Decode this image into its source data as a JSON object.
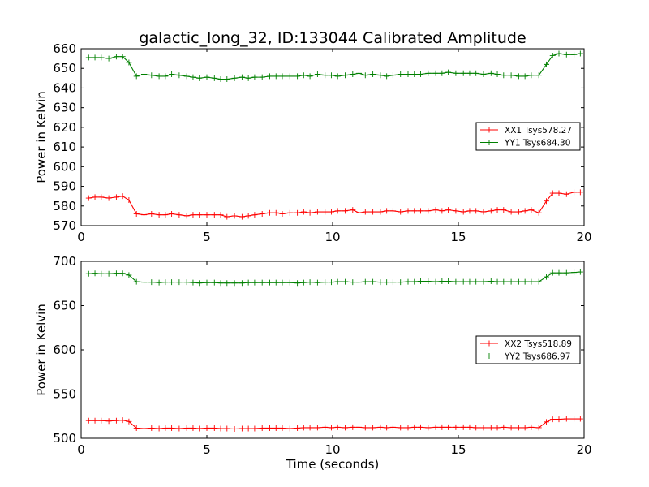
{
  "title": "galactic_long_32, ID:133044 Calibrated Amplitude",
  "colors": {
    "red": "#ff0000",
    "green": "#008000"
  },
  "chart_data": [
    {
      "type": "line",
      "ylabel": "Power in Kelvin",
      "xlabel": "",
      "xlim": [
        0,
        20
      ],
      "ylim": [
        570,
        660
      ],
      "xticks": [
        0,
        5,
        10,
        15,
        20
      ],
      "yticks": [
        570,
        580,
        590,
        600,
        610,
        620,
        630,
        640,
        650,
        660
      ],
      "grid": false,
      "legend_position": "center-right",
      "x": [
        0.3,
        0.55,
        0.8,
        1.1,
        1.4,
        1.65,
        1.9,
        2.2,
        2.5,
        2.8,
        3.1,
        3.35,
        3.6,
        3.9,
        4.2,
        4.45,
        4.7,
        5.0,
        5.3,
        5.55,
        5.8,
        6.1,
        6.4,
        6.65,
        6.9,
        7.2,
        7.5,
        7.75,
        8.0,
        8.3,
        8.6,
        8.85,
        9.1,
        9.4,
        9.7,
        9.95,
        10.2,
        10.5,
        10.8,
        11.05,
        11.3,
        11.6,
        11.9,
        12.15,
        12.4,
        12.7,
        13.0,
        13.25,
        13.5,
        13.8,
        14.1,
        14.35,
        14.6,
        14.9,
        15.2,
        15.45,
        15.7,
        16.0,
        16.3,
        16.55,
        16.8,
        17.1,
        17.4,
        17.65,
        17.9,
        18.2,
        18.5,
        18.75,
        19.0,
        19.3,
        19.6,
        19.85
      ],
      "series": [
        {
          "name": "XX1 Tsys578.27",
          "color": "#ff0000",
          "values": [
            584,
            584.5,
            584.5,
            584,
            584.5,
            585,
            583,
            576,
            575.5,
            576,
            575.5,
            575.5,
            576,
            575.5,
            575,
            575.5,
            575.5,
            575.5,
            575.5,
            575.5,
            574.5,
            575,
            574.5,
            575,
            575.5,
            576,
            576.5,
            576.5,
            576,
            576.5,
            576.5,
            577,
            576.5,
            577,
            577,
            577,
            577.5,
            577.5,
            578,
            576.5,
            577,
            577,
            577,
            577.5,
            577.5,
            577,
            577.5,
            577.5,
            577.5,
            577.5,
            578,
            577.5,
            578,
            577.5,
            577,
            577.5,
            577.5,
            577,
            577.5,
            578,
            578,
            577,
            577,
            577.5,
            578,
            576.5,
            582.5,
            586.5,
            586.5,
            586,
            587,
            587
          ]
        },
        {
          "name": "YY1 Tsys684.30",
          "color": "#008000",
          "values": [
            655.5,
            655.5,
            655.5,
            655,
            656,
            656,
            653,
            646,
            647,
            646.5,
            646,
            646,
            647,
            646.5,
            646,
            645.5,
            645,
            645.5,
            645,
            644.5,
            644.5,
            645,
            645.5,
            645,
            645.5,
            645.5,
            646,
            646,
            646,
            646,
            646,
            646.5,
            646,
            647,
            646.5,
            646.5,
            646,
            646.5,
            647,
            647.5,
            646.5,
            647,
            646.5,
            646,
            646.5,
            647,
            647,
            647,
            647,
            647.5,
            647.5,
            647.5,
            648,
            647.5,
            647.5,
            647.5,
            647.5,
            647,
            647.5,
            647,
            646.5,
            646.5,
            646,
            646,
            646.5,
            646.5,
            652,
            656.5,
            657.5,
            657,
            657,
            657.5
          ]
        }
      ]
    },
    {
      "type": "line",
      "ylabel": "Power in Kelvin",
      "xlabel": "Time (seconds)",
      "xlim": [
        0,
        20
      ],
      "ylim": [
        500,
        700
      ],
      "xticks": [
        0,
        5,
        10,
        15,
        20
      ],
      "yticks": [
        500,
        550,
        600,
        650,
        700
      ],
      "grid": false,
      "legend_position": "center-right",
      "x": [
        0.3,
        0.55,
        0.8,
        1.1,
        1.4,
        1.65,
        1.9,
        2.2,
        2.5,
        2.8,
        3.1,
        3.35,
        3.6,
        3.9,
        4.2,
        4.45,
        4.7,
        5.0,
        5.3,
        5.55,
        5.8,
        6.1,
        6.4,
        6.65,
        6.9,
        7.2,
        7.5,
        7.75,
        8.0,
        8.3,
        8.6,
        8.85,
        9.1,
        9.4,
        9.7,
        9.95,
        10.2,
        10.5,
        10.8,
        11.05,
        11.3,
        11.6,
        11.9,
        12.15,
        12.4,
        12.7,
        13.0,
        13.25,
        13.5,
        13.8,
        14.1,
        14.35,
        14.6,
        14.9,
        15.2,
        15.45,
        15.7,
        16.0,
        16.3,
        16.55,
        16.8,
        17.1,
        17.4,
        17.65,
        17.9,
        18.2,
        18.5,
        18.75,
        19.0,
        19.3,
        19.6,
        19.85
      ],
      "series": [
        {
          "name": "XX2 Tsys518.89",
          "color": "#ff0000",
          "values": [
            520,
            520,
            520,
            519.5,
            520,
            520.5,
            519,
            511.5,
            511,
            511.5,
            511,
            511.5,
            511.5,
            511,
            511.5,
            511.5,
            511,
            511.5,
            511.5,
            511,
            511,
            510.5,
            511,
            511,
            511,
            511.5,
            511.5,
            511.5,
            511.5,
            511,
            511.5,
            512,
            512,
            512,
            512.5,
            512,
            512.5,
            512,
            512.5,
            512.5,
            512,
            512,
            512.5,
            512,
            512.5,
            512,
            512,
            512.5,
            512.5,
            512,
            512.5,
            512.5,
            512.5,
            512.5,
            512.5,
            512.5,
            512,
            512,
            512,
            512,
            512.5,
            512,
            512,
            512,
            512.5,
            512,
            518.5,
            521.5,
            521.5,
            522,
            522,
            522
          ]
        },
        {
          "name": "YY2 Tsys686.97",
          "color": "#008000",
          "values": [
            686,
            686.5,
            686,
            686,
            686.5,
            686.5,
            684.5,
            677,
            676.5,
            676.5,
            676,
            676.5,
            676.5,
            676.5,
            676.5,
            676,
            675.5,
            676,
            676,
            675.5,
            675.5,
            675.5,
            675.5,
            676,
            676,
            676,
            676,
            676,
            676,
            676,
            675.5,
            676,
            676.5,
            676,
            676.5,
            676.5,
            677,
            677,
            676.5,
            676.5,
            677,
            677,
            676.5,
            676.5,
            676.5,
            676.5,
            677,
            677,
            677.5,
            677.5,
            677,
            677.5,
            677.5,
            677,
            677,
            677,
            677,
            677,
            677.5,
            677,
            677,
            677,
            677,
            677,
            677,
            677,
            682.5,
            687,
            687,
            687,
            687.5,
            688
          ]
        }
      ]
    }
  ]
}
